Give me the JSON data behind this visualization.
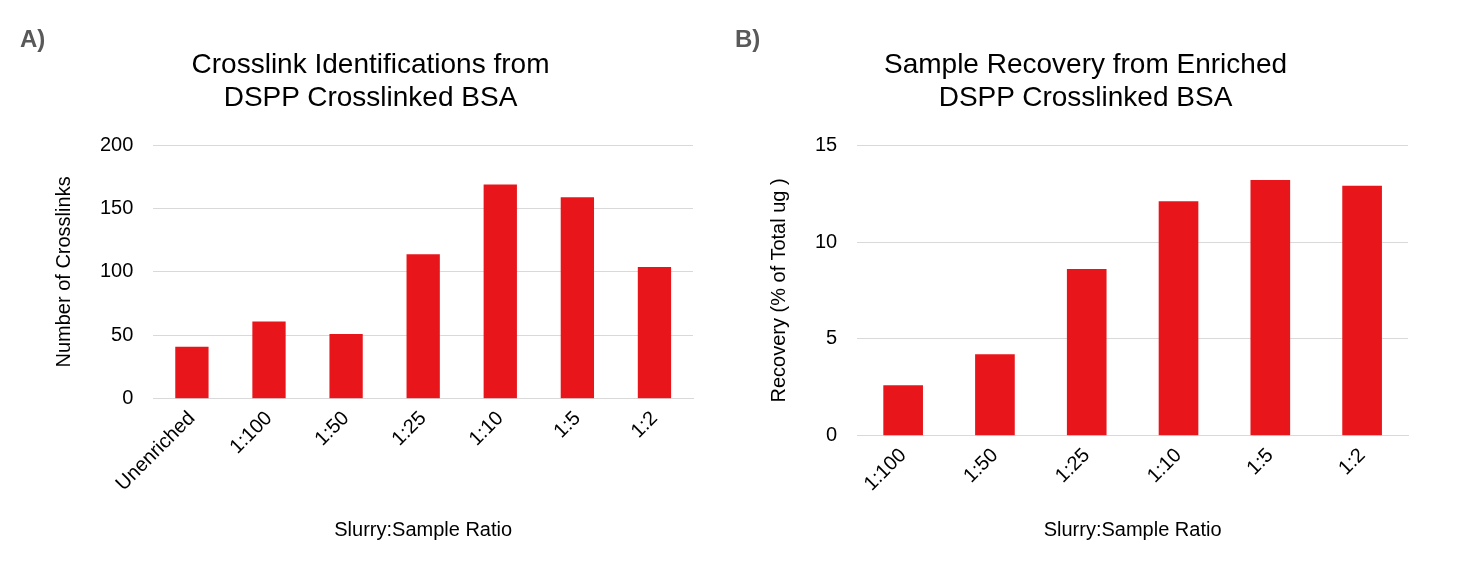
{
  "chart_data": [
    {
      "type": "bar",
      "title": "Crosslink Identifications from\nDSPP Crosslinked BSA",
      "xlabel": "Slurry:Sample Ratio",
      "ylabel": "Number of Crosslinks",
      "annotations": [
        "A)"
      ],
      "categories": [
        "Unenriched",
        "1:100",
        "1:50",
        "1:25",
        "1:10",
        "1:5",
        "1:2"
      ],
      "values": [
        41,
        61,
        51,
        114,
        169,
        159,
        104
      ],
      "color": "#e8161b",
      "ylim": [
        0,
        200
      ],
      "yticks": [
        0,
        50,
        100,
        150,
        200
      ],
      "grid": "y"
    },
    {
      "type": "bar",
      "title": "Sample Recovery from Enriched\nDSPP Crosslinked BSA",
      "xlabel": "Slurry:Sample Ratio",
      "ylabel": "Recovery (% of Total ug )",
      "annotations": [
        "B)"
      ],
      "categories": [
        "1:100",
        "1:50",
        "1:25",
        "1:10",
        "1:5",
        "1:2"
      ],
      "values": [
        2.6,
        4.2,
        8.6,
        12.1,
        13.2,
        12.9
      ],
      "color": "#e8161b",
      "ylim": [
        0,
        15
      ],
      "yticks": [
        0,
        5,
        10,
        15
      ],
      "grid": "y"
    }
  ]
}
